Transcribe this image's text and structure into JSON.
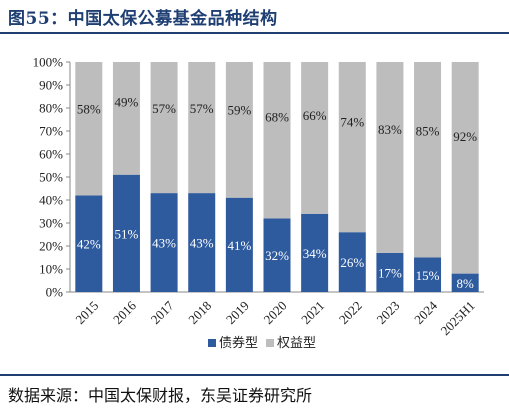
{
  "title": "图55：中国太保公募基金品种结构",
  "source": "数据来源：中国太保财报，东吴证券研究所",
  "chart_data": {
    "type": "bar",
    "stacked": true,
    "categories": [
      "2015",
      "2016",
      "2017",
      "2018",
      "2019",
      "2020",
      "2021",
      "2022",
      "2023",
      "2024",
      "2025H1"
    ],
    "series": [
      {
        "name": "债券型",
        "color": "#2e5a9e",
        "values": [
          42,
          51,
          43,
          43,
          41,
          32,
          34,
          26,
          17,
          15,
          8
        ],
        "labels": [
          "42%",
          "51%",
          "43%",
          "43%",
          "41%",
          "32%",
          "34%",
          "26%",
          "17%",
          "15%",
          "8%"
        ]
      },
      {
        "name": "权益型",
        "color": "#bdbdbd",
        "values": [
          58,
          49,
          57,
          57,
          59,
          68,
          66,
          74,
          83,
          85,
          92
        ],
        "labels": [
          "58%",
          "49%",
          "57%",
          "57%",
          "59%",
          "68%",
          "66%",
          "74%",
          "83%",
          "85%",
          "92%"
        ]
      }
    ],
    "yticks": [
      "0%",
      "10%",
      "20%",
      "30%",
      "40%",
      "50%",
      "60%",
      "70%",
      "80%",
      "90%",
      "100%"
    ],
    "ylim": [
      0,
      100
    ],
    "legend_position": "bottom"
  }
}
